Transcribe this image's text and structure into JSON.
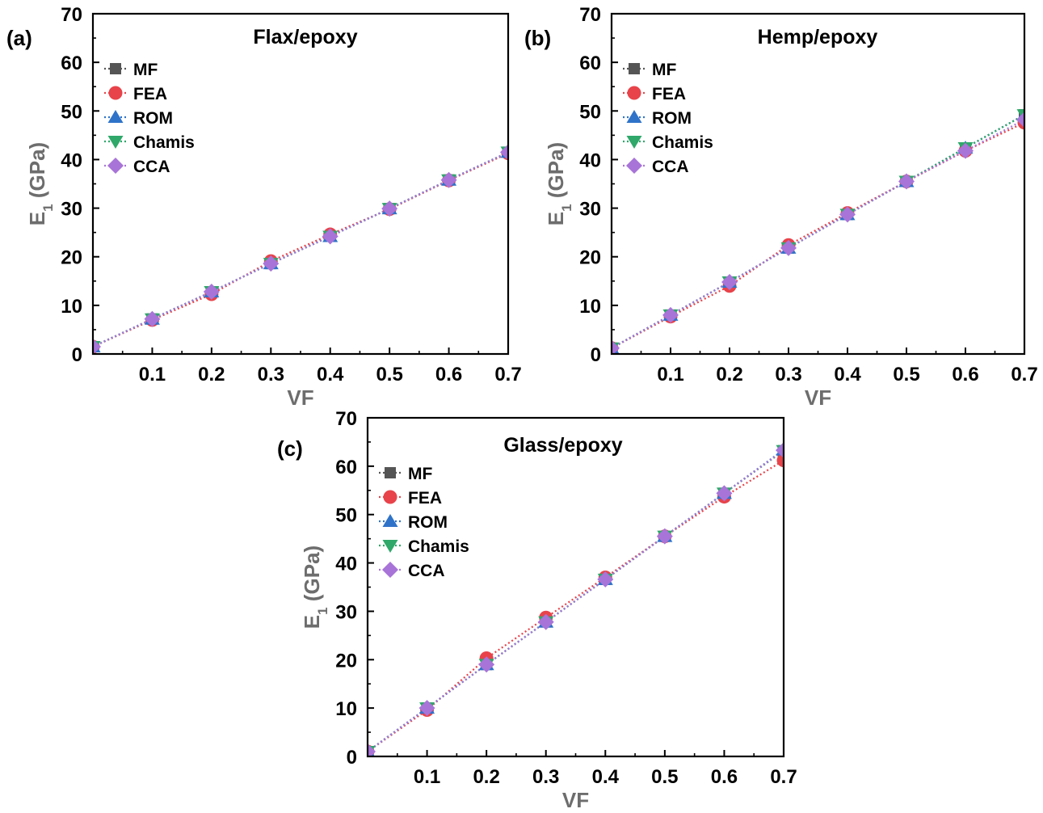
{
  "figure": {
    "x_title": "VF",
    "y_title_main": "E",
    "y_title_sub": "1",
    "y_title_unit": " (GPa)"
  },
  "colors": {
    "MF": "#555555",
    "FEA": "#e8434a",
    "ROM": "#2f73c9",
    "Chamis": "#2fa86a",
    "CCA": "#a874d8",
    "axis_title": "#6d6d6d"
  },
  "chart_data": [
    {
      "type": "line",
      "panel_label": "(a)",
      "title": "Flax/epoxy",
      "xlabel": "VF",
      "ylabel": "E1 (GPa)",
      "xlim": [
        0,
        0.7
      ],
      "ylim": [
        0,
        70
      ],
      "x_ticks": [
        "0.1",
        "0.2",
        "0.3",
        "0.4",
        "0.5",
        "0.6",
        "0.7"
      ],
      "y_ticks": [
        "0",
        "10",
        "20",
        "30",
        "40",
        "50",
        "60",
        "70"
      ],
      "x": [
        0,
        0.1,
        0.2,
        0.3,
        0.4,
        0.5,
        0.6,
        0.7
      ],
      "legend_position": "top-left",
      "series": [
        {
          "name": "MF",
          "marker": "square",
          "values": [
            1.5,
            7.2,
            12.8,
            18.6,
            24.2,
            29.9,
            35.8,
            41.5
          ]
        },
        {
          "name": "FEA",
          "marker": "circle",
          "values": [
            1.5,
            7.0,
            12.3,
            19.1,
            24.6,
            29.8,
            35.7,
            41.3
          ]
        },
        {
          "name": "ROM",
          "marker": "triangle-up",
          "values": [
            1.5,
            7.2,
            12.8,
            18.6,
            24.2,
            29.9,
            35.8,
            41.5
          ]
        },
        {
          "name": "Chamis",
          "marker": "triangle-down",
          "values": [
            1.5,
            7.2,
            12.8,
            18.6,
            24.2,
            29.9,
            35.8,
            41.5
          ]
        },
        {
          "name": "CCA",
          "marker": "diamond",
          "values": [
            1.5,
            7.2,
            12.8,
            18.6,
            24.2,
            29.9,
            35.8,
            41.5
          ]
        }
      ]
    },
    {
      "type": "line",
      "panel_label": "(b)",
      "title": "Hemp/epoxy",
      "xlabel": "VF",
      "ylabel": "E1 (GPa)",
      "xlim": [
        0,
        0.7
      ],
      "ylim": [
        0,
        70
      ],
      "x_ticks": [
        "0.1",
        "0.2",
        "0.3",
        "0.4",
        "0.5",
        "0.6",
        "0.7"
      ],
      "y_ticks": [
        "0",
        "10",
        "20",
        "30",
        "40",
        "50",
        "60",
        "70"
      ],
      "x": [
        0,
        0.1,
        0.2,
        0.3,
        0.4,
        0.5,
        0.6,
        0.7
      ],
      "legend_position": "top-left",
      "series": [
        {
          "name": "MF",
          "marker": "square",
          "values": [
            1.2,
            8.0,
            14.8,
            21.8,
            28.7,
            35.5,
            42.4,
            49.2
          ]
        },
        {
          "name": "FEA",
          "marker": "circle",
          "values": [
            1.2,
            7.7,
            14.0,
            22.4,
            29.0,
            35.5,
            41.8,
            47.6
          ]
        },
        {
          "name": "ROM",
          "marker": "triangle-up",
          "values": [
            1.2,
            8.0,
            14.8,
            21.8,
            28.7,
            35.5,
            42.4,
            49.2
          ]
        },
        {
          "name": "Chamis",
          "marker": "triangle-down",
          "values": [
            1.2,
            8.0,
            14.8,
            21.8,
            28.7,
            35.5,
            42.4,
            49.2
          ]
        },
        {
          "name": "CCA",
          "marker": "diamond",
          "values": [
            1.2,
            8.0,
            14.8,
            21.8,
            28.7,
            35.5,
            41.8,
            48.2
          ]
        }
      ]
    },
    {
      "type": "line",
      "panel_label": "(c)",
      "title": "Glass/epoxy",
      "xlabel": "VF",
      "ylabel": "E1 (GPa)",
      "xlim": [
        0,
        0.7
      ],
      "ylim": [
        0,
        70
      ],
      "x_ticks": [
        "0.1",
        "0.2",
        "0.3",
        "0.4",
        "0.5",
        "0.6",
        "0.7"
      ],
      "y_ticks": [
        "0",
        "10",
        "20",
        "30",
        "40",
        "50",
        "60",
        "70"
      ],
      "x": [
        0,
        0.1,
        0.2,
        0.3,
        0.4,
        0.5,
        0.6,
        0.7
      ],
      "legend_position": "top-left",
      "series": [
        {
          "name": "MF",
          "marker": "square",
          "values": [
            1.0,
            10.0,
            19.0,
            27.8,
            36.6,
            45.5,
            54.4,
            63.2
          ]
        },
        {
          "name": "FEA",
          "marker": "circle",
          "values": [
            1.0,
            9.6,
            20.3,
            28.7,
            37.0,
            45.5,
            53.7,
            61.2
          ]
        },
        {
          "name": "ROM",
          "marker": "triangle-up",
          "values": [
            1.0,
            10.0,
            19.0,
            27.8,
            36.6,
            45.5,
            54.4,
            63.4
          ]
        },
        {
          "name": "Chamis",
          "marker": "triangle-down",
          "values": [
            1.0,
            10.0,
            19.0,
            27.8,
            36.6,
            45.5,
            54.4,
            63.2
          ]
        },
        {
          "name": "CCA",
          "marker": "diamond",
          "values": [
            1.0,
            10.0,
            19.0,
            27.8,
            36.6,
            45.5,
            54.4,
            63.3
          ]
        }
      ]
    }
  ]
}
